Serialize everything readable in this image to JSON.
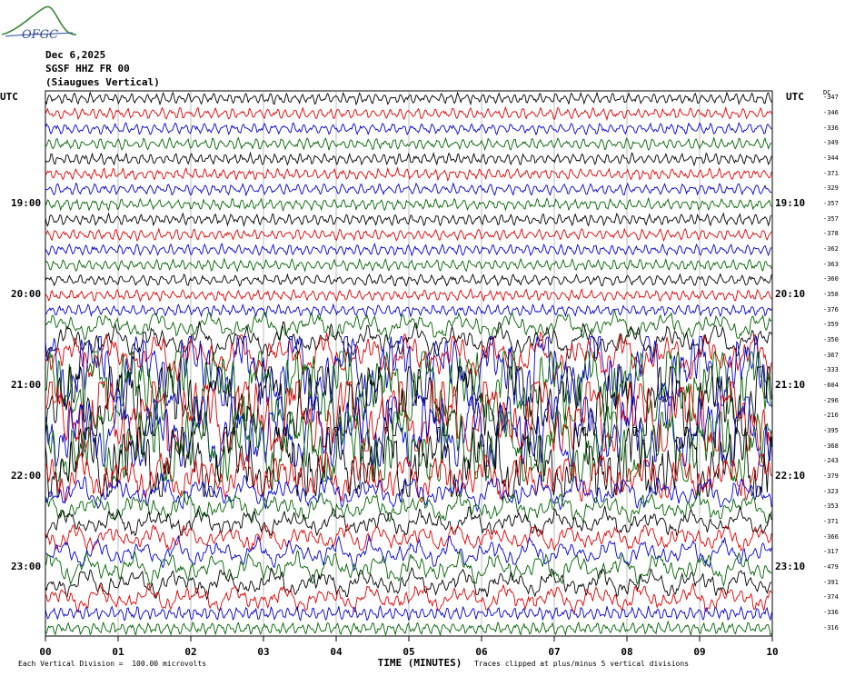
{
  "logo": {
    "text": "OFGC"
  },
  "header": {
    "date": "Dec 6,2025",
    "station": "SGSF HHZ FR 00",
    "location": "(Siaugues Vertical)"
  },
  "axis": {
    "left_unit": "UTC",
    "right_unit": "UTC",
    "dc_label": "DC",
    "xlabel": "TIME (MINUTES)"
  },
  "footer": {
    "scale_note": "Each Vertical Division =  100.00 microvolts",
    "clip_note": "Traces clipped at plus/minus 5 vertical divisions"
  },
  "chart_data": {
    "type": "line",
    "title": "SGSF HHZ FR 00 (Siaugues Vertical)",
    "xlabel": "TIME (MINUTES)",
    "xlim": [
      0,
      10
    ],
    "x_ticks": [
      "00",
      "01",
      "02",
      "03",
      "04",
      "05",
      "06",
      "07",
      "08",
      "09",
      "10"
    ],
    "left_time_labels": [
      {
        "row": 7,
        "label": "19:00"
      },
      {
        "row": 13,
        "label": "20:00"
      },
      {
        "row": 19,
        "label": "21:00"
      },
      {
        "row": 25,
        "label": "22:00"
      },
      {
        "row": 31,
        "label": "23:00"
      }
    ],
    "right_time_labels": [
      {
        "row": 7,
        "label": "19:10"
      },
      {
        "row": 13,
        "label": "20:10"
      },
      {
        "row": 19,
        "label": "21:10"
      },
      {
        "row": 25,
        "label": "22:10"
      },
      {
        "row": 31,
        "label": "23:10"
      }
    ],
    "trace_colors": [
      "#000000",
      "#e00000",
      "#0000d0",
      "#006400"
    ],
    "dc_offsets": [
      -347,
      -346,
      -336,
      -349,
      -344,
      -371,
      -329,
      -357,
      -357,
      -378,
      -362,
      -363,
      -360,
      -358,
      -376,
      -359,
      -350,
      -367,
      -333,
      -604,
      -296,
      -216,
      -395,
      -368,
      -243,
      -379,
      -323,
      -353,
      -371,
      -366,
      -317,
      -479,
      -391,
      -374,
      -336,
      -316
    ],
    "trace_amplitude": [
      1,
      1,
      1,
      1,
      1,
      1,
      1,
      1,
      1,
      1,
      1,
      1,
      1,
      1,
      1,
      1.3,
      1.6,
      2.2,
      5,
      5,
      5,
      5,
      5,
      5,
      5,
      2.5,
      1.6,
      1.4,
      1.3,
      1.3,
      1.4,
      1.5,
      1.4,
      1.3,
      1.2,
      1.1
    ],
    "clip_divisions": 5,
    "units_per_division": "100.00 microvolts"
  }
}
